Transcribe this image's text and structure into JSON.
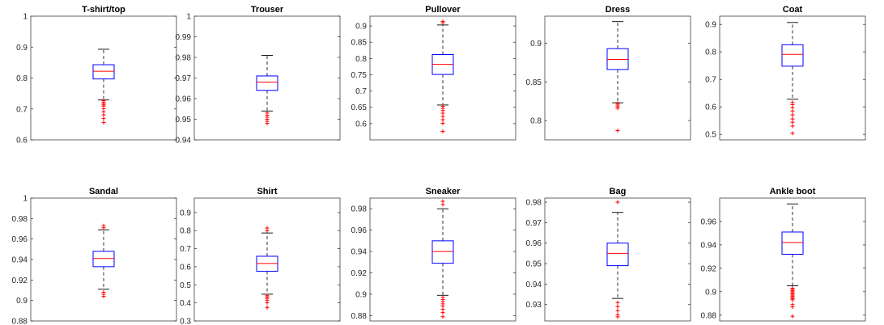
{
  "colors": {
    "box": "#0000ff",
    "median": "#ff0000",
    "whisker": "#000000",
    "outlier": "#ff0000",
    "axes": "#262626"
  },
  "chart_data": [
    {
      "type": "box",
      "title": "T-shirt/top",
      "ylim": [
        0.6,
        1.0
      ],
      "yticks": [
        "0.6",
        "0.7",
        "0.8",
        "0.9",
        "1"
      ],
      "box": {
        "q1": 0.797,
        "median": 0.822,
        "q3": 0.843,
        "whisker_low": 0.729,
        "whisker_high": 0.893
      },
      "outliers": [
        0.727,
        0.722,
        0.717,
        0.713,
        0.709,
        0.701,
        0.691,
        0.681,
        0.669,
        0.656
      ]
    },
    {
      "type": "box",
      "title": "Trouser",
      "ylim": [
        0.94,
        1.0
      ],
      "yticks": [
        "0.94",
        "0.95",
        "0.96",
        "0.97",
        "0.98",
        "0.99",
        "1"
      ],
      "box": {
        "q1": 0.964,
        "median": 0.968,
        "q3": 0.971,
        "whisker_low": 0.954,
        "whisker_high": 0.981
      },
      "outliers": [
        0.953,
        0.952,
        0.951,
        0.95,
        0.949,
        0.948
      ]
    },
    {
      "type": "box",
      "title": "Pullover",
      "ylim": [
        0.55,
        0.93
      ],
      "yticks": [
        "0.6",
        "0.65",
        "0.7",
        "0.75",
        "0.8",
        "0.85",
        "0.9"
      ],
      "box": {
        "q1": 0.751,
        "median": 0.782,
        "q3": 0.812,
        "whisker_low": 0.657,
        "whisker_high": 0.903
      },
      "outliers": [
        0.914,
        0.91,
        0.653,
        0.647,
        0.64,
        0.632,
        0.622,
        0.612,
        0.601,
        0.576
      ]
    },
    {
      "type": "box",
      "title": "Dress",
      "ylim": [
        0.775,
        0.935
      ],
      "yticks": [
        "0.8",
        "0.85",
        "0.9"
      ],
      "box": {
        "q1": 0.866,
        "median": 0.879,
        "q3": 0.893,
        "whisker_low": 0.823,
        "whisker_high": 0.928
      },
      "outliers": [
        0.822,
        0.82,
        0.818,
        0.816,
        0.787
      ]
    },
    {
      "type": "box",
      "title": "Coat",
      "ylim": [
        0.48,
        0.93
      ],
      "yticks": [
        "0.5",
        "0.6",
        "0.7",
        "0.8",
        "0.9"
      ],
      "box": {
        "q1": 0.748,
        "median": 0.791,
        "q3": 0.826,
        "whisker_low": 0.628,
        "whisker_high": 0.907
      },
      "outliers": [
        0.616,
        0.608,
        0.598,
        0.585,
        0.571,
        0.556,
        0.544,
        0.53,
        0.504
      ]
    },
    {
      "type": "box",
      "title": "Sandal",
      "ylim": [
        0.88,
        1.0
      ],
      "yticks": [
        "0.88",
        "0.9",
        "0.92",
        "0.94",
        "0.96",
        "0.98",
        "1"
      ],
      "box": {
        "q1": 0.933,
        "median": 0.941,
        "q3": 0.948,
        "whisker_low": 0.911,
        "whisker_high": 0.969
      },
      "outliers": [
        0.973,
        0.971,
        0.908,
        0.906,
        0.904
      ]
    },
    {
      "type": "box",
      "title": "Shirt",
      "ylim": [
        0.3,
        0.98
      ],
      "yticks": [
        "0.3",
        "0.4",
        "0.5",
        "0.6",
        "0.7",
        "0.8",
        "0.9"
      ],
      "box": {
        "q1": 0.575,
        "median": 0.618,
        "q3": 0.658,
        "whisker_low": 0.448,
        "whisker_high": 0.787
      },
      "outliers": [
        0.814,
        0.8,
        0.44,
        0.433,
        0.425,
        0.415,
        0.402,
        0.375
      ]
    },
    {
      "type": "box",
      "title": "Sneaker",
      "ylim": [
        0.875,
        0.99
      ],
      "yticks": [
        "0.88",
        "0.9",
        "0.92",
        "0.94",
        "0.96",
        "0.98"
      ],
      "box": {
        "q1": 0.929,
        "median": 0.94,
        "q3": 0.95,
        "whisker_low": 0.899,
        "whisker_high": 0.98
      },
      "outliers": [
        0.987,
        0.984,
        0.897,
        0.895,
        0.893,
        0.891,
        0.889,
        0.886,
        0.883,
        0.879
      ]
    },
    {
      "type": "box",
      "title": "Bag",
      "ylim": [
        0.922,
        0.982
      ],
      "yticks": [
        "0.93",
        "0.94",
        "0.95",
        "0.96",
        "0.97",
        "0.98"
      ],
      "box": {
        "q1": 0.949,
        "median": 0.955,
        "q3": 0.96,
        "whisker_low": 0.933,
        "whisker_high": 0.975
      },
      "outliers": [
        0.98,
        0.931,
        0.929,
        0.927,
        0.925,
        0.924
      ]
    },
    {
      "type": "box",
      "title": "Ankle boot",
      "ylim": [
        0.875,
        0.98
      ],
      "yticks": [
        "0.88",
        "0.9",
        "0.92",
        "0.94",
        "0.96"
      ],
      "box": {
        "q1": 0.932,
        "median": 0.942,
        "q3": 0.951,
        "whisker_low": 0.905,
        "whisker_high": 0.975
      },
      "outliers": [
        0.903,
        0.902,
        0.901,
        0.9,
        0.899,
        0.898,
        0.897,
        0.896,
        0.895,
        0.894,
        0.893,
        0.889,
        0.887,
        0.879
      ]
    }
  ]
}
